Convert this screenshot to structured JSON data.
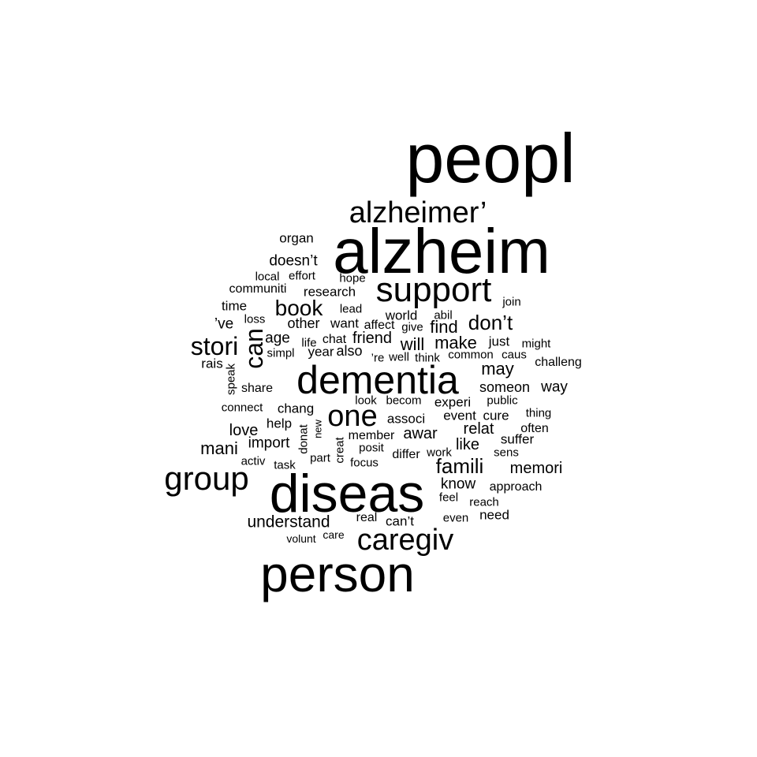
{
  "text_color": "#000000",
  "background_color": "#ffffff",
  "words": [
    "peopl",
    "alzheim",
    "diseas",
    "person",
    "dementia",
    "alzheimer’",
    "support",
    "group",
    "caregiv",
    "one",
    "stori",
    "can",
    "book",
    "famili",
    "don’t",
    "understand",
    "organ",
    "doesn’t",
    "local",
    "effort",
    "hope",
    "communiti",
    "research",
    "time",
    "join",
    "’ve",
    "loss",
    "other",
    "want",
    "affect",
    "world",
    "abil",
    "give",
    "find",
    "lead",
    "age",
    "life",
    "chat",
    "friend",
    "will",
    "make",
    "just",
    "might",
    "simpl",
    "year",
    "also",
    "’re",
    "well",
    "think",
    "common",
    "caus",
    "rais",
    "may",
    "challeng",
    "speak",
    "share",
    "someon",
    "way",
    "look",
    "becom",
    "experi",
    "public",
    "connect",
    "chang",
    "associ",
    "event",
    "cure",
    "thing",
    "help",
    "love",
    "donat",
    "new",
    "relat",
    "often",
    "member",
    "awar",
    "import",
    "mani",
    "creat",
    "posit",
    "differ",
    "work",
    "like",
    "suffer",
    "sens",
    "activ",
    "task",
    "part",
    "focus",
    "memori",
    "know",
    "approach",
    "feel",
    "reach",
    "real",
    "can’t",
    "even",
    "need",
    "volunt",
    "care"
  ]
}
